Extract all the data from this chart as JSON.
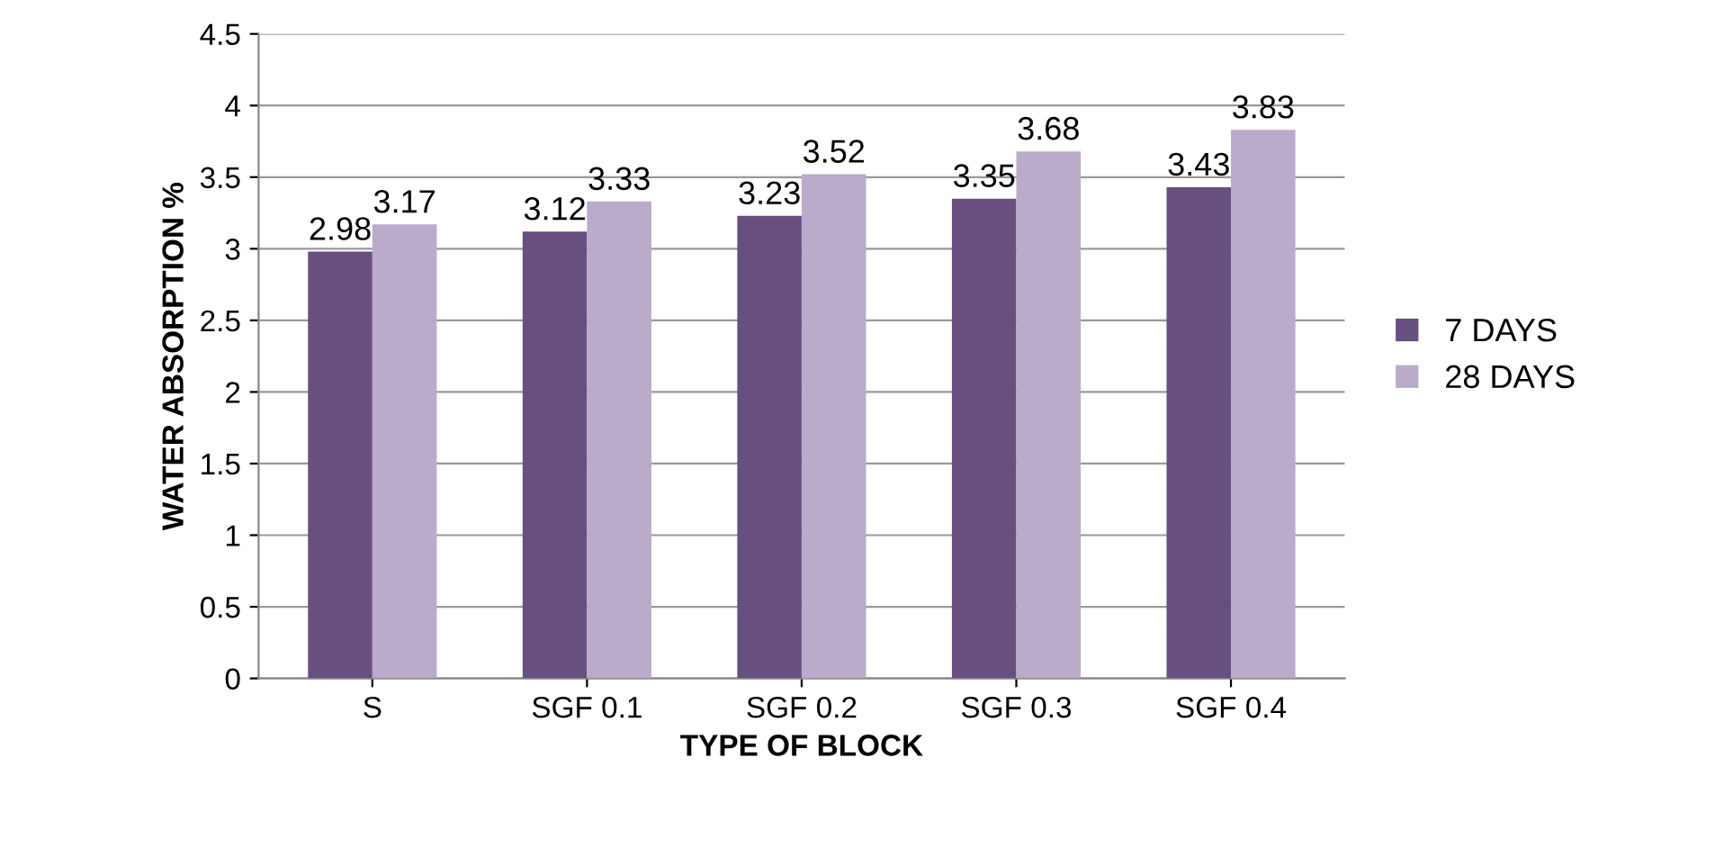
{
  "chart_data": {
    "type": "bar",
    "xlabel": "TYPE OF BLOCK",
    "ylabel": "WATER ABSORPTION %",
    "categories": [
      "S",
      "SGF 0.1",
      "SGF 0.2",
      "SGF 0.3",
      "SGF 0.4"
    ],
    "series": [
      {
        "name": "7 DAYS",
        "color": "#674f80",
        "values": [
          2.98,
          3.12,
          3.23,
          3.35,
          3.43
        ]
      },
      {
        "name": "28 DAYS",
        "color": "#b9abc9",
        "values": [
          3.17,
          3.33,
          3.52,
          3.68,
          3.83
        ]
      }
    ],
    "ylim": [
      0,
      4.5
    ],
    "yticks": [
      0,
      0.5,
      1,
      1.5,
      2,
      2.5,
      3,
      3.5,
      4,
      4.5
    ],
    "grid": "y",
    "legend": "right",
    "data_labels": true
  }
}
